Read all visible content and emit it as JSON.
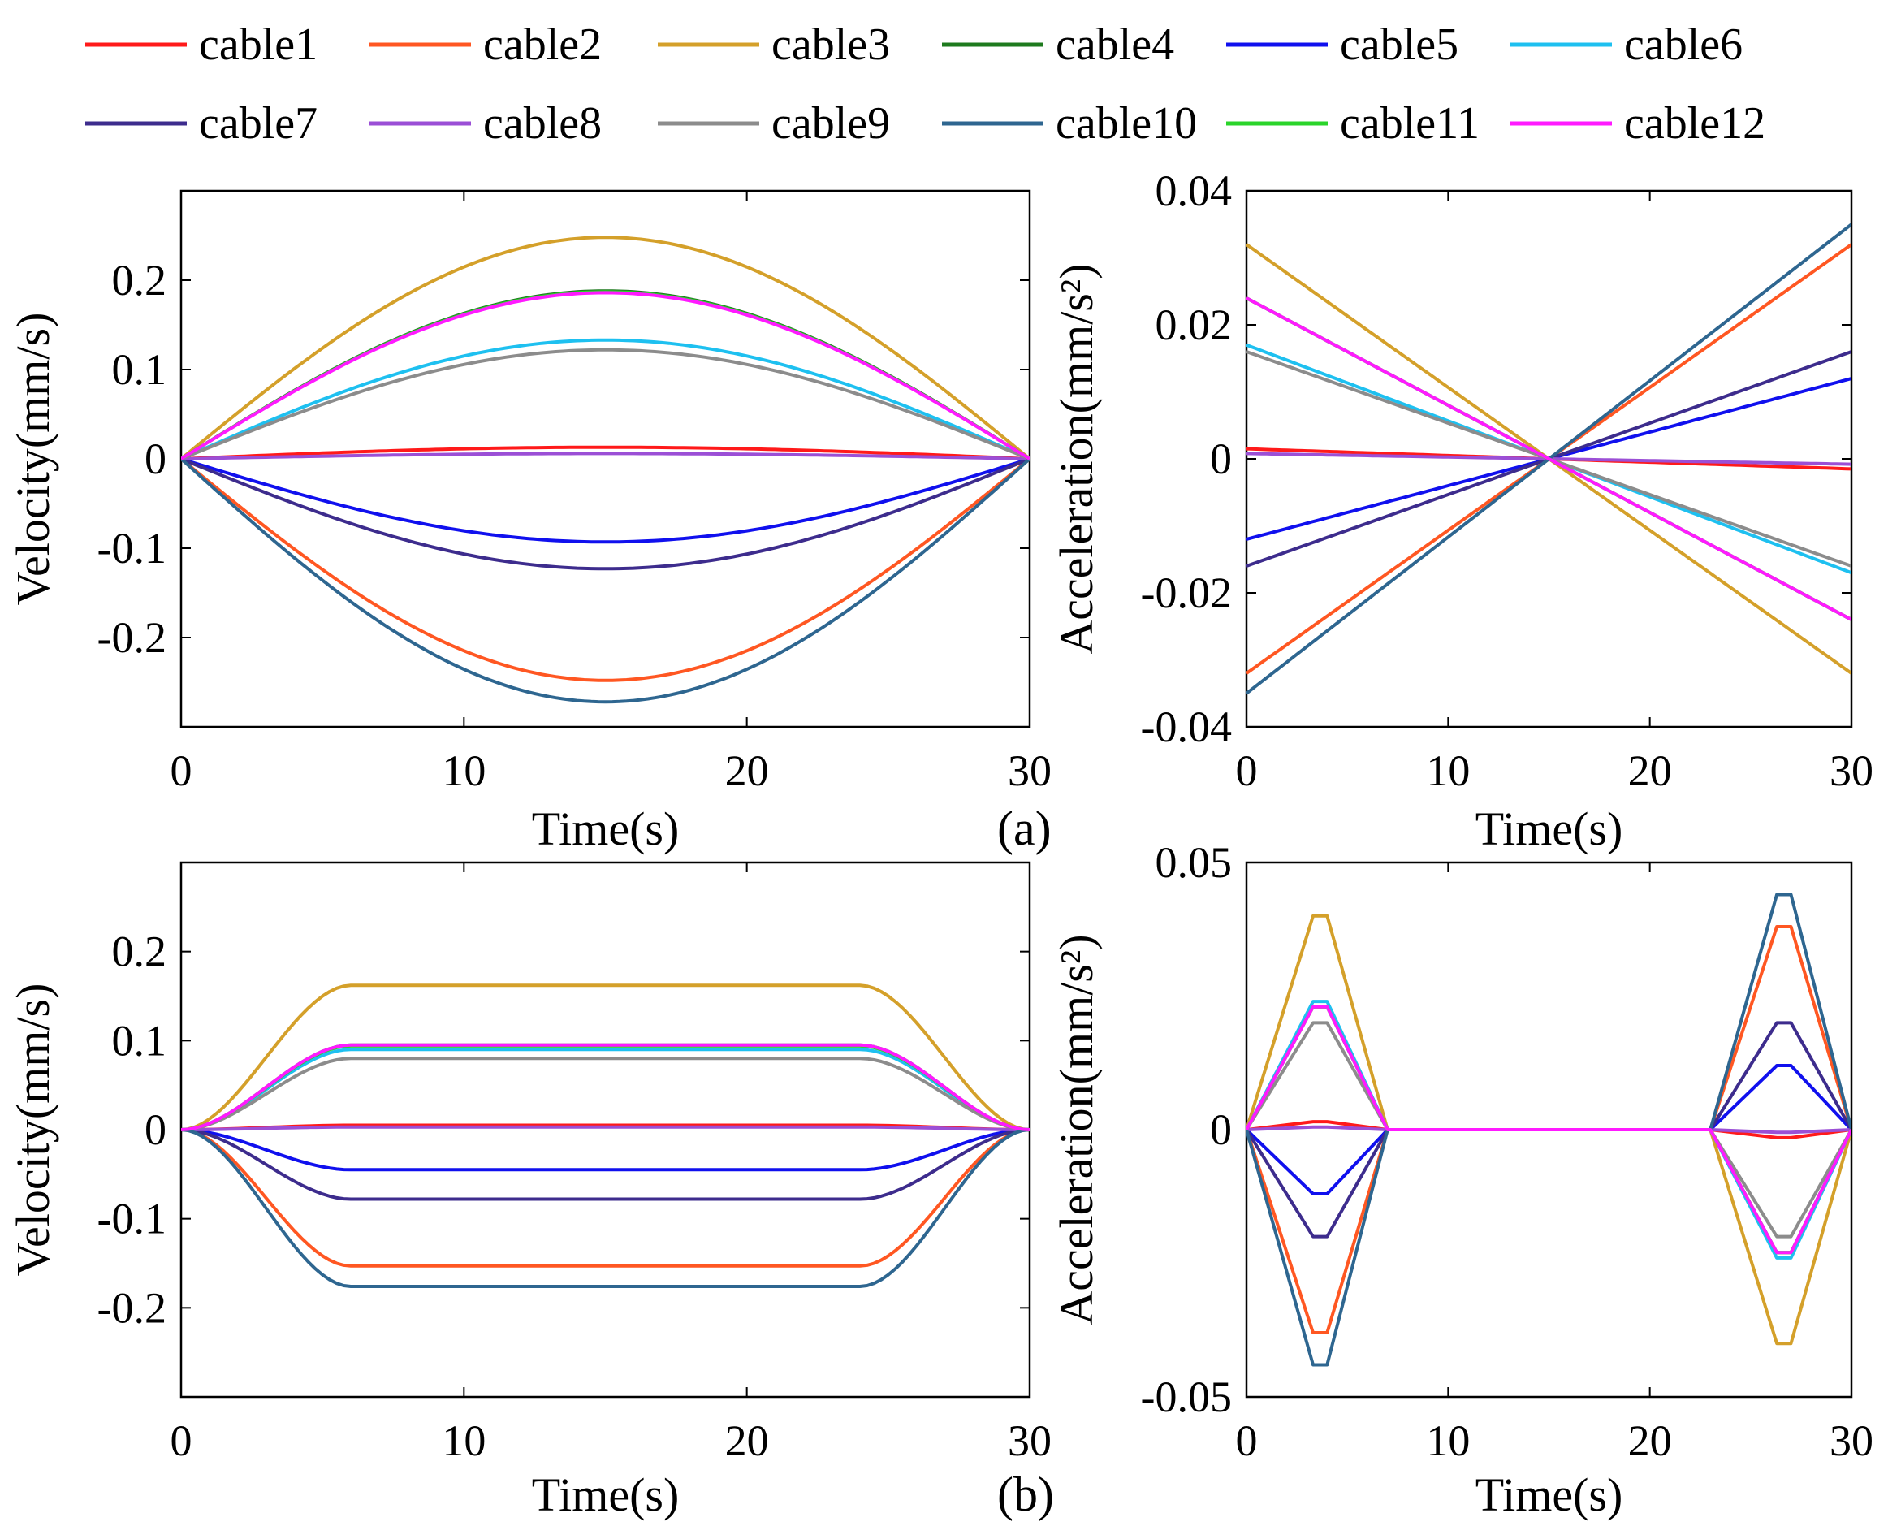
{
  "legend": [
    {
      "name": "cable1",
      "color": "#ff1a1a"
    },
    {
      "name": "cable2",
      "color": "#ff5722"
    },
    {
      "name": "cable3",
      "color": "#d4a02a"
    },
    {
      "name": "cable4",
      "color": "#1e7a1e"
    },
    {
      "name": "cable5",
      "color": "#1010ee"
    },
    {
      "name": "cable6",
      "color": "#1ec0f0"
    },
    {
      "name": "cable7",
      "color": "#3d2c8d"
    },
    {
      "name": "cable8",
      "color": "#9b4fd6"
    },
    {
      "name": "cable9",
      "color": "#8c8c8c"
    },
    {
      "name": "cable10",
      "color": "#2e6690"
    },
    {
      "name": "cable11",
      "color": "#2ad42a"
    },
    {
      "name": "cable12",
      "color": "#ff1aff"
    }
  ],
  "panel_labels": {
    "a": "(a)",
    "b": "(b)"
  },
  "chart_data": [
    {
      "id": "a_velocity",
      "type": "line",
      "profile": "sine",
      "xlabel": "Time(s)",
      "ylabel": "Velocity(mm/s)",
      "xlim": [
        0,
        30
      ],
      "ylim": [
        -0.3,
        0.3
      ],
      "xticks": [
        0,
        10,
        20,
        30
      ],
      "yticks": [
        -0.2,
        -0.1,
        0,
        0.1,
        0.2
      ],
      "ytick_labels": [
        "-0.2",
        "-0.1",
        "0",
        "0.1",
        "0.2"
      ],
      "series_peaks": [
        {
          "name": "cable1",
          "peak": 0.013
        },
        {
          "name": "cable2",
          "peak": -0.248
        },
        {
          "name": "cable3",
          "peak": 0.248
        },
        {
          "name": "cable4",
          "peak": 0.188
        },
        {
          "name": "cable5",
          "peak": -0.093
        },
        {
          "name": "cable6",
          "peak": 0.133
        },
        {
          "name": "cable7",
          "peak": -0.123
        },
        {
          "name": "cable8",
          "peak": 0.006
        },
        {
          "name": "cable9",
          "peak": 0.122
        },
        {
          "name": "cable10",
          "peak": -0.272
        },
        {
          "name": "cable11",
          "peak": 0.187
        },
        {
          "name": "cable12",
          "peak": 0.186
        }
      ]
    },
    {
      "id": "a_acceleration",
      "type": "line",
      "profile": "linear",
      "xlabel": "Time(s)",
      "ylabel": "Acceleration(mm/s²)",
      "xlim": [
        0,
        30
      ],
      "ylim": [
        -0.04,
        0.04
      ],
      "xticks": [
        0,
        10,
        20,
        30
      ],
      "yticks": [
        -0.04,
        -0.02,
        0,
        0.02,
        0.04
      ],
      "ytick_labels": [
        "-0.04",
        "-0.02",
        "0",
        "0.02",
        "0.04"
      ],
      "series_start": [
        {
          "name": "cable1",
          "start": 0.0015
        },
        {
          "name": "cable2",
          "start": -0.032
        },
        {
          "name": "cable3",
          "start": 0.032
        },
        {
          "name": "cable4",
          "start": 0.024
        },
        {
          "name": "cable5",
          "start": -0.012
        },
        {
          "name": "cable6",
          "start": 0.017
        },
        {
          "name": "cable7",
          "start": -0.016
        },
        {
          "name": "cable8",
          "start": 0.0008
        },
        {
          "name": "cable9",
          "start": 0.016
        },
        {
          "name": "cable10",
          "start": -0.035
        },
        {
          "name": "cable11",
          "start": 0.024
        },
        {
          "name": "cable12",
          "start": 0.024
        }
      ]
    },
    {
      "id": "b_velocity",
      "type": "line",
      "profile": "trapezoid",
      "xlabel": "Time(s)",
      "ylabel": "Velocity(mm/s)",
      "xlim": [
        0,
        30
      ],
      "ylim": [
        -0.3,
        0.3
      ],
      "xticks": [
        0,
        10,
        20,
        30
      ],
      "yticks": [
        -0.2,
        -0.1,
        0,
        0.1,
        0.2
      ],
      "ytick_labels": [
        "-0.2",
        "-0.1",
        "0",
        "0.1",
        "0.2"
      ],
      "ramp_end": 6,
      "ramp_start_down": 24,
      "series_plateau": [
        {
          "name": "cable1",
          "plateau": 0.005
        },
        {
          "name": "cable2",
          "plateau": -0.153
        },
        {
          "name": "cable3",
          "plateau": 0.162
        },
        {
          "name": "cable4",
          "plateau": 0.095
        },
        {
          "name": "cable5",
          "plateau": -0.045
        },
        {
          "name": "cable6",
          "plateau": 0.09
        },
        {
          "name": "cable7",
          "plateau": -0.078
        },
        {
          "name": "cable8",
          "plateau": 0.003
        },
        {
          "name": "cable9",
          "plateau": 0.08
        },
        {
          "name": "cable10",
          "plateau": -0.176
        },
        {
          "name": "cable11",
          "plateau": 0.094
        },
        {
          "name": "cable12",
          "plateau": 0.095
        }
      ]
    },
    {
      "id": "b_acceleration",
      "type": "line",
      "profile": "triangle_pulses",
      "xlabel": "Time(s)",
      "ylabel": "Acceleration(mm/s²)",
      "xlim": [
        0,
        30
      ],
      "ylim": [
        -0.05,
        0.05
      ],
      "xticks": [
        0,
        10,
        20,
        30
      ],
      "yticks": [
        -0.05,
        0,
        0.05
      ],
      "ytick_labels": [
        "-0.05",
        "0",
        "0.05"
      ],
      "pulse1": [
        0,
        3.3,
        4.0,
        7
      ],
      "pulse2": [
        23,
        26.3,
        27.0,
        30
      ],
      "series_peak": [
        {
          "name": "cable1",
          "peak": 0.0015
        },
        {
          "name": "cable2",
          "peak": -0.038
        },
        {
          "name": "cable3",
          "peak": 0.04
        },
        {
          "name": "cable4",
          "peak": 0.023
        },
        {
          "name": "cable5",
          "peak": -0.012
        },
        {
          "name": "cable6",
          "peak": 0.024
        },
        {
          "name": "cable7",
          "peak": -0.02
        },
        {
          "name": "cable8",
          "peak": 0.0005
        },
        {
          "name": "cable9",
          "peak": 0.02
        },
        {
          "name": "cable10",
          "peak": -0.044
        },
        {
          "name": "cable11",
          "peak": 0.023
        },
        {
          "name": "cable12",
          "peak": 0.023
        }
      ]
    }
  ]
}
